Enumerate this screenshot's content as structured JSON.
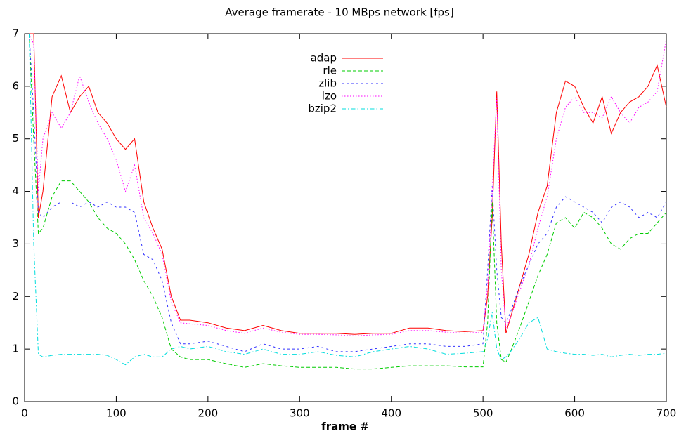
{
  "chart_data": {
    "type": "line",
    "title": "Average framerate - 10 MBps network [fps]",
    "x_label": "frame #",
    "x": [
      5,
      10,
      15,
      20,
      30,
      40,
      50,
      60,
      70,
      80,
      90,
      100,
      110,
      120,
      130,
      140,
      150,
      160,
      170,
      180,
      200,
      220,
      240,
      260,
      280,
      300,
      320,
      340,
      360,
      380,
      400,
      420,
      440,
      460,
      480,
      500,
      505,
      510,
      515,
      520,
      525,
      530,
      540,
      550,
      560,
      570,
      580,
      590,
      600,
      610,
      620,
      630,
      640,
      650,
      660,
      670,
      680,
      690,
      700
    ],
    "series": [
      {
        "name": "adap",
        "color": "#ff0000",
        "values": [
          7,
          7,
          3.5,
          4.0,
          5.8,
          6.2,
          5.5,
          5.8,
          6.0,
          5.5,
          5.3,
          5.0,
          4.8,
          5.0,
          3.8,
          3.3,
          2.9,
          2.0,
          1.55,
          1.55,
          1.5,
          1.4,
          1.35,
          1.45,
          1.35,
          1.3,
          1.3,
          1.3,
          1.28,
          1.3,
          1.3,
          1.4,
          1.4,
          1.35,
          1.33,
          1.35,
          2.0,
          3.5,
          5.9,
          3.0,
          1.3,
          1.6,
          2.2,
          2.8,
          3.6,
          4.1,
          5.5,
          6.1,
          6.0,
          5.6,
          5.3,
          5.8,
          5.1,
          5.5,
          5.7,
          5.8,
          6.0,
          6.4,
          5.6
        ]
      },
      {
        "name": "rle",
        "color": "#00cc00",
        "values": [
          7,
          5,
          3.2,
          3.3,
          3.9,
          4.2,
          4.2,
          4.0,
          3.8,
          3.5,
          3.3,
          3.2,
          3.0,
          2.7,
          2.3,
          2.0,
          1.6,
          1.0,
          0.85,
          0.8,
          0.8,
          0.72,
          0.65,
          0.72,
          0.68,
          0.65,
          0.65,
          0.65,
          0.62,
          0.62,
          0.65,
          0.68,
          0.68,
          0.68,
          0.66,
          0.66,
          1.5,
          3.8,
          1.5,
          0.8,
          0.75,
          0.95,
          1.4,
          1.9,
          2.4,
          2.8,
          3.4,
          3.5,
          3.3,
          3.6,
          3.5,
          3.3,
          3.0,
          2.9,
          3.1,
          3.2,
          3.2,
          3.4,
          3.6
        ]
      },
      {
        "name": "zlib",
        "color": "#3333ff",
        "values": [
          7,
          5.5,
          3.6,
          3.5,
          3.7,
          3.8,
          3.8,
          3.7,
          3.8,
          3.7,
          3.8,
          3.7,
          3.7,
          3.6,
          2.8,
          2.7,
          2.3,
          1.5,
          1.1,
          1.1,
          1.15,
          1.05,
          0.95,
          1.1,
          1.0,
          1.0,
          1.05,
          0.95,
          0.95,
          1.0,
          1.05,
          1.1,
          1.1,
          1.05,
          1.05,
          1.1,
          2.5,
          4.1,
          2.5,
          1.6,
          1.5,
          1.7,
          2.2,
          2.6,
          3.0,
          3.2,
          3.7,
          3.9,
          3.8,
          3.7,
          3.6,
          3.4,
          3.7,
          3.8,
          3.7,
          3.5,
          3.6,
          3.5,
          3.8
        ]
      },
      {
        "name": "lzo",
        "color": "#ff00ff",
        "values": [
          7,
          6.8,
          4.0,
          5.0,
          5.5,
          5.2,
          5.5,
          6.2,
          5.7,
          5.3,
          5.0,
          4.6,
          4.0,
          4.5,
          3.5,
          3.2,
          2.8,
          1.9,
          1.5,
          1.48,
          1.45,
          1.35,
          1.3,
          1.4,
          1.32,
          1.28,
          1.28,
          1.27,
          1.25,
          1.27,
          1.28,
          1.35,
          1.35,
          1.32,
          1.3,
          1.32,
          2.2,
          4.0,
          5.8,
          2.5,
          1.4,
          1.6,
          2.1,
          2.6,
          3.3,
          3.9,
          5.0,
          5.6,
          5.8,
          5.5,
          5.5,
          5.4,
          5.8,
          5.5,
          5.3,
          5.6,
          5.7,
          5.9,
          6.9
        ]
      },
      {
        "name": "bzip2",
        "color": "#00dddd",
        "values": [
          7,
          3.0,
          0.9,
          0.85,
          0.88,
          0.9,
          0.9,
          0.9,
          0.9,
          0.9,
          0.88,
          0.8,
          0.7,
          0.85,
          0.9,
          0.85,
          0.85,
          1.0,
          1.05,
          1.0,
          1.05,
          0.95,
          0.9,
          1.0,
          0.9,
          0.9,
          0.95,
          0.88,
          0.85,
          0.95,
          1.0,
          1.05,
          1.0,
          0.9,
          0.92,
          0.95,
          1.2,
          1.7,
          1.0,
          0.8,
          0.85,
          0.95,
          1.2,
          1.5,
          1.6,
          1.0,
          0.95,
          0.92,
          0.9,
          0.9,
          0.88,
          0.9,
          0.85,
          0.88,
          0.9,
          0.88,
          0.9,
          0.9,
          0.92
        ]
      }
    ],
    "xlim": [
      0,
      700
    ],
    "ylim": [
      0,
      7
    ],
    "xticks": [
      0,
      100,
      200,
      300,
      400,
      500,
      600,
      700
    ],
    "yticks": [
      0,
      1,
      2,
      3,
      4,
      5,
      6,
      7
    ]
  }
}
